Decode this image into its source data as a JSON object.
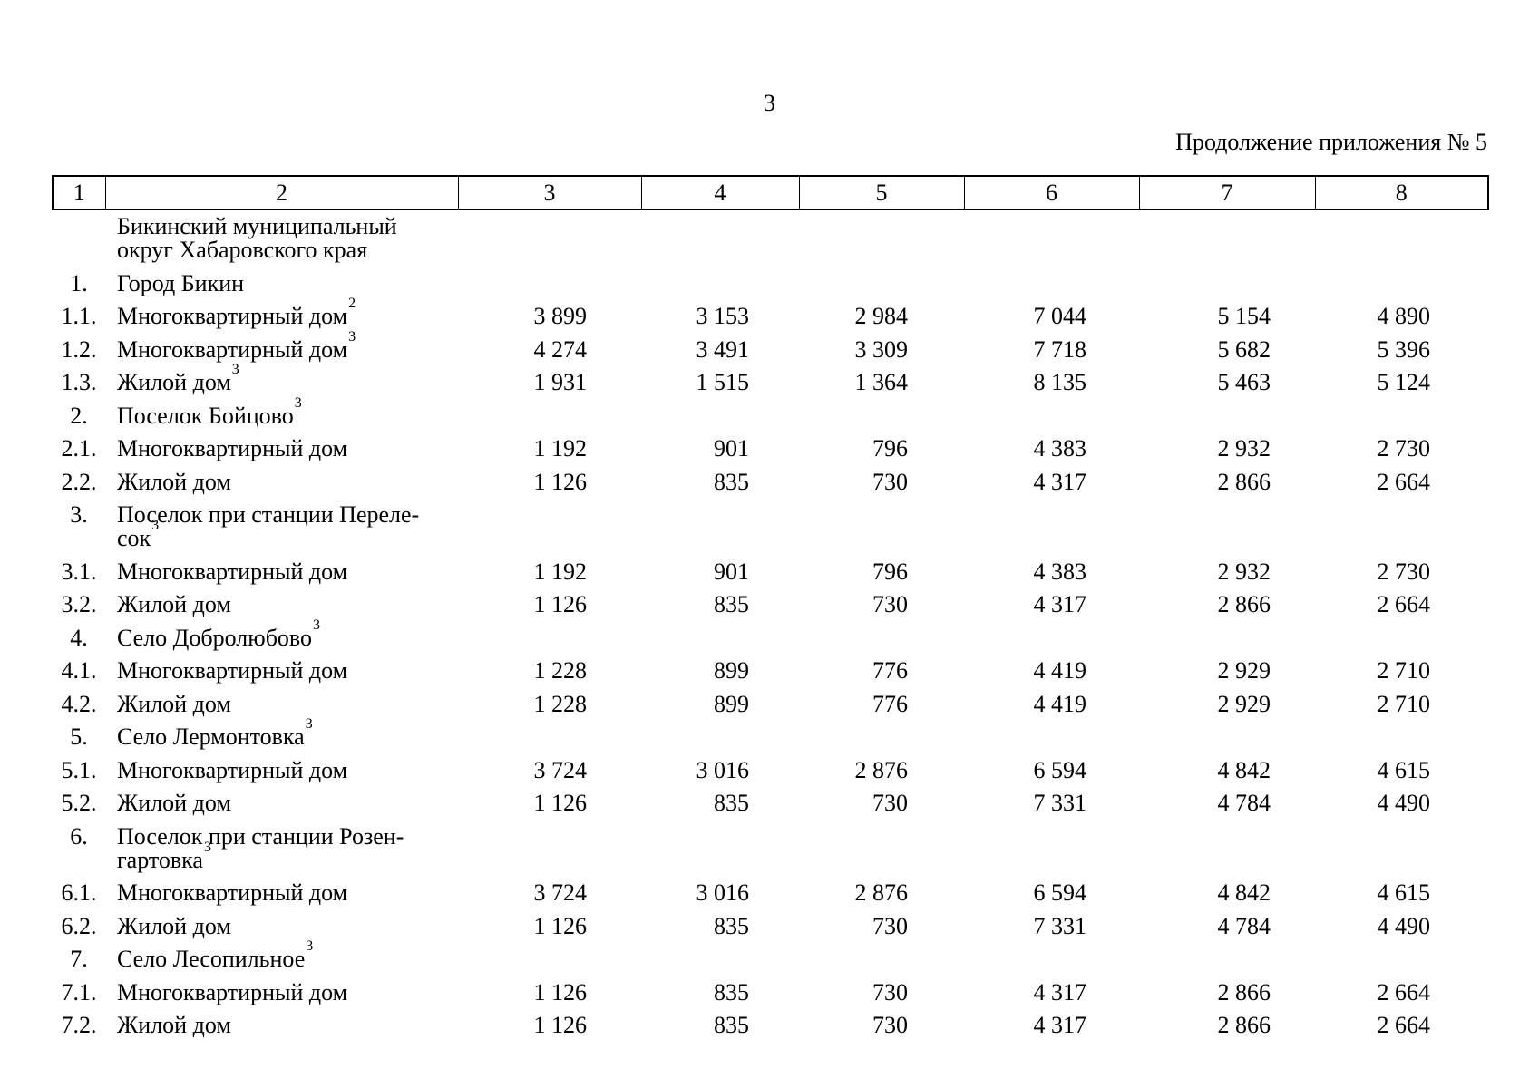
{
  "page": {
    "page_number": "3",
    "continuation_note": "Продолжение приложения № 5"
  },
  "table": {
    "column_headers": [
      "1",
      "2",
      "3",
      "4",
      "5",
      "6",
      "7",
      "8"
    ],
    "rows": [
      {
        "num": "",
        "lines": [
          "Бикинский муниципальный",
          "округ Хабаровского края"
        ],
        "sup": "",
        "values": [
          "",
          "",
          "",
          "",
          "",
          ""
        ]
      },
      {
        "num": "1.",
        "lines": [
          "Город Бикин"
        ],
        "sup": "",
        "values": [
          "",
          "",
          "",
          "",
          "",
          ""
        ]
      },
      {
        "num": "1.1.",
        "lines": [
          "Многоквартирный дом"
        ],
        "sup": "2",
        "values": [
          "3 899",
          "3 153",
          "2 984",
          "7 044",
          "5 154",
          "4 890"
        ]
      },
      {
        "num": "1.2.",
        "lines": [
          "Многоквартирный дом"
        ],
        "sup": "3",
        "values": [
          "4 274",
          "3 491",
          "3 309",
          "7 718",
          "5 682",
          "5 396"
        ]
      },
      {
        "num": "1.3.",
        "lines": [
          "Жилой дом"
        ],
        "sup": "3",
        "values": [
          "1 931",
          "1 515",
          "1 364",
          "8 135",
          "5 463",
          "5 124"
        ]
      },
      {
        "num": "2.",
        "lines": [
          "Поселок Бойцово"
        ],
        "sup": "3",
        "values": [
          "",
          "",
          "",
          "",
          "",
          ""
        ]
      },
      {
        "num": "2.1.",
        "lines": [
          "Многоквартирный дом"
        ],
        "sup": "",
        "values": [
          "1 192",
          "901",
          "796",
          "4 383",
          "2 932",
          "2 730"
        ]
      },
      {
        "num": "2.2.",
        "lines": [
          "Жилой дом"
        ],
        "sup": "",
        "values": [
          "1 126",
          "835",
          "730",
          "4 317",
          "2 866",
          "2 664"
        ]
      },
      {
        "num": "3.",
        "lines": [
          "Поселок при станции Переле-",
          "сок"
        ],
        "sup": "3",
        "values": [
          "",
          "",
          "",
          "",
          "",
          ""
        ]
      },
      {
        "num": "3.1.",
        "lines": [
          "Многоквартирный дом"
        ],
        "sup": "",
        "values": [
          "1 192",
          "901",
          "796",
          "4 383",
          "2 932",
          "2 730"
        ]
      },
      {
        "num": "3.2.",
        "lines": [
          "Жилой дом"
        ],
        "sup": "",
        "values": [
          "1 126",
          "835",
          "730",
          "4 317",
          "2 866",
          "2 664"
        ]
      },
      {
        "num": "4.",
        "lines": [
          "Село Добролюбово"
        ],
        "sup": "3",
        "values": [
          "",
          "",
          "",
          "",
          "",
          ""
        ]
      },
      {
        "num": "4.1.",
        "lines": [
          "Многоквартирный дом"
        ],
        "sup": "",
        "values": [
          "1 228",
          "899",
          "776",
          "4 419",
          "2 929",
          "2 710"
        ]
      },
      {
        "num": "4.2.",
        "lines": [
          "Жилой дом"
        ],
        "sup": "",
        "values": [
          "1 228",
          "899",
          "776",
          "4 419",
          "2 929",
          "2 710"
        ]
      },
      {
        "num": "5.",
        "lines": [
          "Село Лермонтовка"
        ],
        "sup": "3",
        "values": [
          "",
          "",
          "",
          "",
          "",
          ""
        ]
      },
      {
        "num": "5.1.",
        "lines": [
          "Многоквартирный дом"
        ],
        "sup": "",
        "values": [
          "3 724",
          "3 016",
          "2 876",
          "6 594",
          "4 842",
          "4 615"
        ]
      },
      {
        "num": "5.2.",
        "lines": [
          "Жилой дом"
        ],
        "sup": "",
        "values": [
          "1 126",
          "835",
          "730",
          "7 331",
          "4 784",
          "4 490"
        ]
      },
      {
        "num": "6.",
        "lines": [
          "Поселок при станции Розен-",
          "гартовка"
        ],
        "sup": "3",
        "values": [
          "",
          "",
          "",
          "",
          "",
          ""
        ]
      },
      {
        "num": "6.1.",
        "lines": [
          "Многоквартирный дом"
        ],
        "sup": "",
        "values": [
          "3 724",
          "3 016",
          "2 876",
          "6 594",
          "4 842",
          "4 615"
        ]
      },
      {
        "num": "6.2.",
        "lines": [
          "Жилой дом"
        ],
        "sup": "",
        "values": [
          "1 126",
          "835",
          "730",
          "7 331",
          "4 784",
          "4 490"
        ]
      },
      {
        "num": "7.",
        "lines": [
          "Село Лесопильное"
        ],
        "sup": "3",
        "values": [
          "",
          "",
          "",
          "",
          "",
          ""
        ]
      },
      {
        "num": "7.1.",
        "lines": [
          "Многоквартирный дом"
        ],
        "sup": "",
        "values": [
          "1 126",
          "835",
          "730",
          "4 317",
          "2 866",
          "2 664"
        ]
      },
      {
        "num": "7.2.",
        "lines": [
          "Жилой дом"
        ],
        "sup": "",
        "values": [
          "1 126",
          "835",
          "730",
          "4 317",
          "2 866",
          "2 664"
        ]
      }
    ]
  }
}
